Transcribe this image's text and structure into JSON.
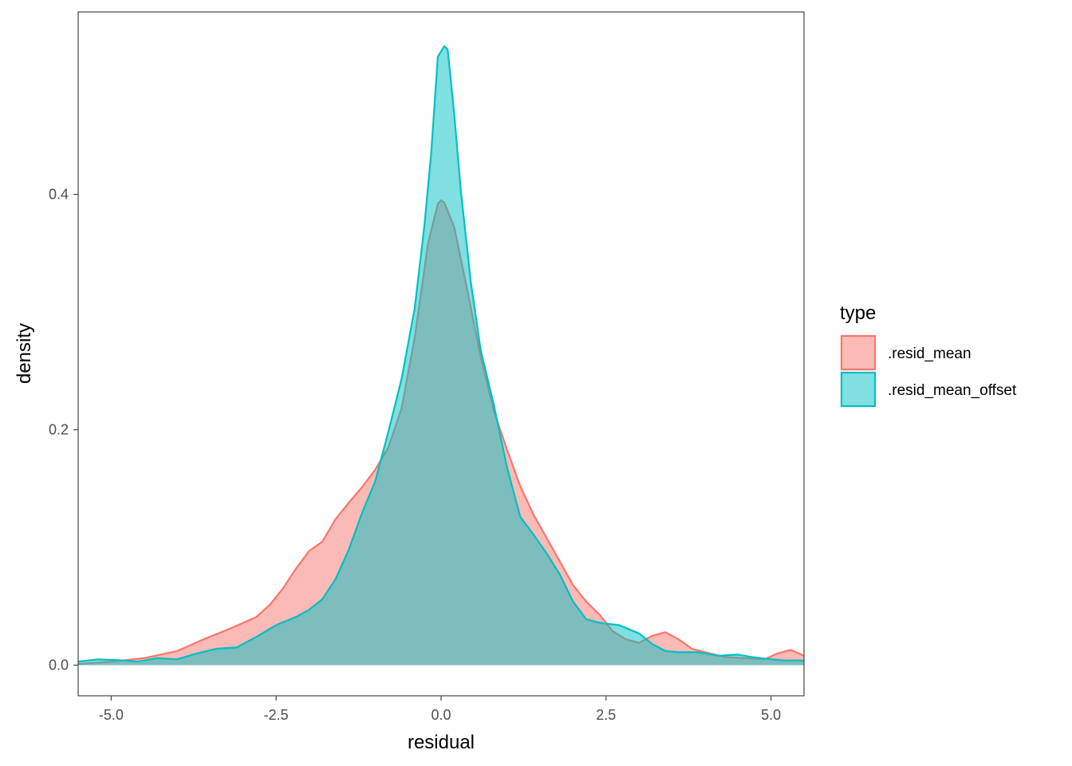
{
  "chart_data": {
    "type": "area",
    "chart_subtype": "density",
    "xlabel": "residual",
    "ylabel": "density",
    "xlim": [
      -5.5,
      5.5
    ],
    "ylim": [
      -0.026,
      0.555
    ],
    "x_ticks": [
      -5.0,
      -2.5,
      0.0,
      2.5,
      5.0
    ],
    "x_tick_labels": [
      "-5.0",
      "-2.5",
      "0.0",
      "2.5",
      "5.0"
    ],
    "y_ticks": [
      0.0,
      0.2,
      0.4
    ],
    "y_tick_labels": [
      "0.0",
      "0.2",
      "0.4"
    ],
    "grid": false,
    "legend": {
      "title": "type",
      "position": "right"
    },
    "series": [
      {
        "name": ".resid_mean",
        "color": "#F8766D",
        "fill": "#F8766D",
        "points": [
          [
            -5.5,
            0.001
          ],
          [
            -5.0,
            0.003
          ],
          [
            -4.5,
            0.006
          ],
          [
            -4.0,
            0.012
          ],
          [
            -3.6,
            0.022
          ],
          [
            -3.2,
            0.031
          ],
          [
            -2.8,
            0.041
          ],
          [
            -2.6,
            0.051
          ],
          [
            -2.4,
            0.065
          ],
          [
            -2.2,
            0.082
          ],
          [
            -2.0,
            0.097
          ],
          [
            -1.8,
            0.105
          ],
          [
            -1.6,
            0.124
          ],
          [
            -1.4,
            0.138
          ],
          [
            -1.2,
            0.151
          ],
          [
            -1.0,
            0.166
          ],
          [
            -0.8,
            0.185
          ],
          [
            -0.6,
            0.218
          ],
          [
            -0.4,
            0.278
          ],
          [
            -0.2,
            0.358
          ],
          [
            -0.05,
            0.392
          ],
          [
            0.0,
            0.395
          ],
          [
            0.05,
            0.393
          ],
          [
            0.2,
            0.372
          ],
          [
            0.4,
            0.318
          ],
          [
            0.6,
            0.262
          ],
          [
            0.8,
            0.216
          ],
          [
            1.0,
            0.183
          ],
          [
            1.2,
            0.152
          ],
          [
            1.4,
            0.128
          ],
          [
            1.6,
            0.108
          ],
          [
            1.8,
            0.088
          ],
          [
            2.0,
            0.068
          ],
          [
            2.2,
            0.054
          ],
          [
            2.4,
            0.043
          ],
          [
            2.6,
            0.029
          ],
          [
            2.8,
            0.022
          ],
          [
            3.0,
            0.019
          ],
          [
            3.2,
            0.025
          ],
          [
            3.4,
            0.028
          ],
          [
            3.6,
            0.022
          ],
          [
            3.8,
            0.014
          ],
          [
            4.0,
            0.011
          ],
          [
            4.3,
            0.007
          ],
          [
            4.6,
            0.006
          ],
          [
            4.9,
            0.005
          ],
          [
            5.1,
            0.01
          ],
          [
            5.3,
            0.013
          ],
          [
            5.5,
            0.008
          ]
        ]
      },
      {
        "name": ".resid_mean_offset",
        "color": "#00BFC4",
        "fill": "#00BFC4",
        "points": [
          [
            -5.5,
            0.003
          ],
          [
            -5.2,
            0.005
          ],
          [
            -4.8,
            0.004
          ],
          [
            -4.6,
            0.003
          ],
          [
            -4.3,
            0.006
          ],
          [
            -4.0,
            0.005
          ],
          [
            -3.7,
            0.01
          ],
          [
            -3.4,
            0.014
          ],
          [
            -3.1,
            0.015
          ],
          [
            -2.8,
            0.024
          ],
          [
            -2.5,
            0.034
          ],
          [
            -2.2,
            0.041
          ],
          [
            -2.0,
            0.047
          ],
          [
            -1.8,
            0.056
          ],
          [
            -1.6,
            0.073
          ],
          [
            -1.4,
            0.098
          ],
          [
            -1.2,
            0.129
          ],
          [
            -1.0,
            0.156
          ],
          [
            -0.8,
            0.198
          ],
          [
            -0.6,
            0.243
          ],
          [
            -0.4,
            0.303
          ],
          [
            -0.25,
            0.375
          ],
          [
            -0.15,
            0.435
          ],
          [
            -0.05,
            0.517
          ],
          [
            0.05,
            0.526
          ],
          [
            0.1,
            0.523
          ],
          [
            0.2,
            0.468
          ],
          [
            0.3,
            0.403
          ],
          [
            0.45,
            0.326
          ],
          [
            0.6,
            0.268
          ],
          [
            0.8,
            0.221
          ],
          [
            1.0,
            0.168
          ],
          [
            1.2,
            0.126
          ],
          [
            1.4,
            0.111
          ],
          [
            1.6,
            0.095
          ],
          [
            1.8,
            0.077
          ],
          [
            2.0,
            0.054
          ],
          [
            2.2,
            0.039
          ],
          [
            2.4,
            0.036
          ],
          [
            2.7,
            0.034
          ],
          [
            3.0,
            0.027
          ],
          [
            3.2,
            0.018
          ],
          [
            3.4,
            0.012
          ],
          [
            3.6,
            0.011
          ],
          [
            3.9,
            0.011
          ],
          [
            4.2,
            0.008
          ],
          [
            4.5,
            0.009
          ],
          [
            4.7,
            0.007
          ],
          [
            5.0,
            0.005
          ],
          [
            5.2,
            0.004
          ],
          [
            5.5,
            0.004
          ]
        ]
      }
    ]
  }
}
